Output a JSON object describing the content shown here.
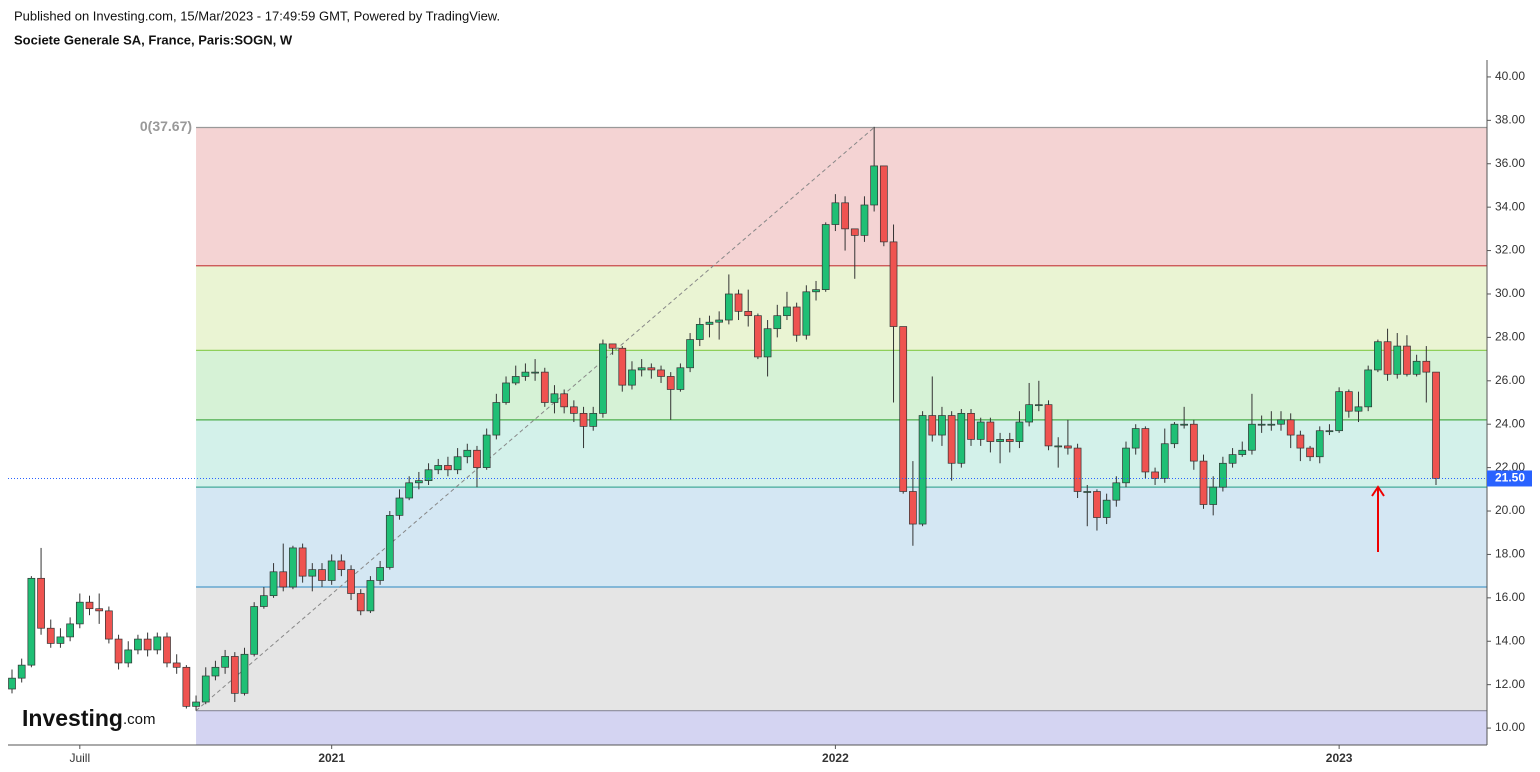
{
  "chart_data": {
    "type": "candlestick",
    "source": "Published on Investing.com, 15/Mar/2023 - 17:49:59 GMT, Powered by TradingView.",
    "title": "Societe Generale SA, France, Paris:SOGN, W",
    "categories": [
      null,
      null,
      null,
      null,
      null,
      null,
      null,
      "Juill",
      null,
      null,
      null,
      null,
      null,
      null,
      null,
      null,
      null,
      null,
      null,
      null,
      null,
      null,
      null,
      null,
      null,
      null,
      null,
      null,
      null,
      null,
      null,
      null,
      null,
      "2021",
      null,
      null,
      null,
      null,
      null,
      null,
      null,
      null,
      null,
      null,
      null,
      null,
      null,
      null,
      null,
      null,
      null,
      null,
      null,
      null,
      null,
      null,
      null,
      null,
      null,
      null,
      null,
      null,
      null,
      null,
      null,
      null,
      null,
      null,
      null,
      null,
      null,
      null,
      null,
      null,
      null,
      null,
      null,
      null,
      null,
      null,
      null,
      null,
      null,
      null,
      null,
      "2022",
      null,
      null,
      null,
      null,
      null,
      null,
      null,
      null,
      null,
      null,
      null,
      null,
      null,
      null,
      null,
      null,
      null,
      null,
      null,
      null,
      null,
      null,
      null,
      null,
      null,
      null,
      null,
      null,
      null,
      null,
      null,
      null,
      null,
      null,
      null,
      null,
      null,
      null,
      null,
      null,
      null,
      null,
      null,
      null,
      null,
      null,
      null,
      null,
      null,
      null,
      null,
      "2023",
      null,
      null,
      null,
      null,
      null,
      null,
      null,
      null,
      null,
      null
    ],
    "open": [
      11.8,
      12.3,
      12.9,
      16.9,
      14.6,
      13.9,
      14.2,
      14.8,
      15.8,
      15.5,
      15.4,
      14.1,
      13.0,
      13.6,
      14.1,
      13.6,
      14.2,
      13.0,
      12.8,
      11.0,
      11.2,
      12.4,
      12.8,
      13.3,
      11.6,
      13.4,
      15.6,
      16.1,
      17.2,
      16.5,
      18.3,
      17.0,
      17.3,
      16.8,
      17.7,
      17.3,
      16.2,
      15.4,
      16.8,
      17.4,
      19.8,
      20.6,
      21.3,
      21.4,
      21.9,
      22.1,
      21.9,
      22.5,
      22.8,
      22.0,
      23.5,
      25.0,
      25.9,
      26.2,
      26.4,
      26.4,
      25.0,
      25.4,
      24.8,
      24.5,
      23.9,
      24.5,
      27.7,
      27.5,
      25.8,
      26.5,
      26.6,
      26.5,
      26.2,
      25.6,
      26.6,
      27.9,
      28.6,
      28.7,
      28.8,
      30.0,
      29.2,
      29.0,
      27.1,
      28.4,
      29.0,
      29.4,
      28.1,
      30.1,
      30.2,
      33.2,
      34.2,
      33.0,
      32.7,
      34.1,
      35.9,
      32.4,
      28.5,
      20.9,
      19.4,
      24.4,
      23.5,
      24.4,
      22.2,
      24.5,
      23.3,
      24.1,
      23.2,
      23.3,
      23.2,
      24.1,
      24.9,
      24.9,
      23.0,
      23.0,
      22.9,
      20.9,
      20.9,
      19.7,
      20.5,
      21.3,
      22.9,
      23.8,
      21.8,
      21.5,
      23.1,
      24.0,
      24.0,
      22.3,
      20.3,
      21.1,
      22.2,
      22.6,
      22.8,
      24.0,
      24.0,
      24.0,
      24.2,
      23.5,
      22.9,
      22.5,
      23.7,
      23.7,
      25.5,
      24.6,
      24.8,
      26.5,
      27.8,
      26.3,
      27.6,
      26.3,
      26.9,
      26.4
    ],
    "high": [
      12.7,
      13.2,
      17.0,
      18.3,
      15.0,
      14.6,
      15.1,
      16.2,
      16.1,
      16.2,
      15.6,
      14.3,
      14.0,
      14.3,
      14.4,
      14.4,
      14.4,
      13.4,
      12.9,
      11.5,
      12.8,
      13.1,
      13.6,
      13.5,
      13.7,
      15.8,
      16.5,
      17.6,
      18.5,
      18.4,
      18.5,
      17.6,
      17.6,
      18.0,
      18.0,
      17.5,
      16.4,
      17.0,
      17.7,
      20.0,
      21.0,
      21.6,
      21.8,
      22.2,
      22.4,
      22.5,
      22.9,
      23.1,
      23.0,
      23.8,
      25.4,
      26.2,
      26.7,
      26.8,
      27.0,
      26.6,
      25.8,
      25.6,
      25.1,
      24.8,
      24.8,
      27.9,
      27.7,
      27.6,
      26.9,
      27.0,
      26.8,
      26.7,
      26.4,
      26.8,
      28.2,
      28.9,
      29.0,
      29.2,
      30.9,
      30.2,
      30.2,
      29.1,
      28.8,
      29.5,
      30.1,
      29.6,
      30.4,
      30.6,
      33.3,
      34.6,
      34.5,
      33.0,
      34.5,
      37.7,
      35.9,
      33.2,
      28.5,
      22.3,
      24.6,
      26.2,
      24.8,
      24.6,
      24.7,
      24.7,
      24.3,
      24.3,
      23.6,
      23.6,
      24.6,
      25.9,
      26.0,
      25.1,
      23.4,
      24.2,
      23.1,
      21.2,
      21.0,
      20.8,
      21.6,
      23.2,
      24.0,
      23.9,
      22.0,
      23.8,
      24.1,
      24.8,
      24.2,
      22.6,
      21.6,
      22.5,
      22.9,
      23.2,
      25.4,
      24.4,
      24.6,
      24.6,
      24.5,
      23.7,
      23.0,
      23.9,
      24.0,
      25.7,
      25.6,
      25.5,
      26.7,
      27.9,
      28.4,
      28.2,
      28.1,
      27.2,
      27.6,
      26.4
    ],
    "low": [
      11.6,
      12.1,
      12.8,
      14.3,
      13.7,
      13.7,
      14.0,
      14.6,
      15.2,
      14.8,
      13.9,
      12.7,
      12.8,
      13.4,
      13.3,
      13.4,
      12.8,
      12.5,
      10.9,
      10.8,
      11.1,
      12.2,
      12.5,
      11.2,
      11.5,
      13.3,
      15.5,
      16.0,
      16.3,
      16.4,
      16.7,
      16.3,
      16.5,
      16.6,
      17.0,
      15.9,
      15.2,
      15.3,
      16.6,
      17.3,
      19.6,
      20.5,
      21.0,
      21.2,
      21.7,
      21.6,
      21.7,
      22.2,
      21.1,
      21.9,
      23.3,
      24.9,
      25.8,
      26.0,
      26.0,
      24.8,
      24.5,
      24.5,
      24.1,
      22.9,
      23.7,
      24.3,
      27.2,
      25.5,
      25.6,
      26.2,
      26.1,
      25.9,
      24.2,
      25.5,
      26.4,
      27.6,
      28.0,
      27.9,
      28.6,
      28.8,
      28.5,
      27.0,
      26.2,
      28.0,
      28.8,
      27.8,
      27.9,
      29.7,
      30.1,
      32.9,
      32.0,
      30.7,
      32.4,
      33.8,
      32.2,
      25.0,
      20.8,
      18.4,
      19.3,
      23.2,
      23.0,
      21.4,
      22.0,
      23.0,
      23.0,
      22.7,
      22.2,
      22.7,
      22.9,
      23.9,
      24.6,
      22.8,
      22.0,
      22.6,
      20.6,
      19.3,
      19.1,
      19.4,
      20.2,
      21.1,
      22.6,
      21.5,
      21.2,
      21.3,
      22.9,
      23.8,
      21.9,
      20.1,
      19.8,
      20.9,
      22.0,
      22.5,
      22.6,
      23.6,
      23.7,
      23.7,
      22.9,
      22.3,
      22.3,
      22.2,
      23.5,
      23.6,
      24.3,
      24.1,
      24.6,
      26.4,
      26.0,
      26.1,
      26.2,
      26.2,
      25.0,
      21.2
    ],
    "close": [
      12.3,
      12.9,
      16.9,
      14.6,
      13.9,
      14.2,
      14.8,
      15.8,
      15.5,
      15.4,
      14.1,
      13.0,
      13.6,
      14.1,
      13.6,
      14.2,
      13.0,
      12.8,
      11.0,
      11.2,
      12.4,
      12.8,
      13.3,
      11.6,
      13.4,
      15.6,
      16.1,
      17.2,
      16.5,
      18.3,
      17.0,
      17.3,
      16.8,
      17.7,
      17.3,
      16.2,
      15.4,
      16.8,
      17.4,
      19.8,
      20.6,
      21.3,
      21.4,
      21.9,
      22.1,
      21.9,
      22.5,
      22.8,
      22.0,
      23.5,
      25.0,
      25.9,
      26.2,
      26.4,
      26.4,
      25.0,
      25.4,
      24.8,
      24.5,
      23.9,
      24.5,
      27.7,
      27.5,
      25.8,
      26.5,
      26.6,
      26.5,
      26.2,
      25.6,
      26.6,
      27.9,
      28.6,
      28.7,
      28.8,
      30.0,
      29.2,
      29.0,
      27.1,
      28.4,
      29.0,
      29.4,
      28.1,
      30.1,
      30.2,
      33.2,
      34.2,
      33.0,
      32.7,
      34.1,
      35.9,
      32.4,
      28.5,
      20.9,
      19.4,
      24.4,
      23.5,
      24.4,
      22.2,
      24.5,
      23.3,
      24.1,
      23.2,
      23.3,
      23.2,
      24.1,
      24.9,
      24.9,
      23.0,
      23.0,
      22.9,
      20.9,
      20.9,
      19.7,
      20.5,
      21.3,
      22.9,
      23.8,
      21.8,
      21.5,
      23.1,
      24.0,
      24.0,
      22.3,
      20.3,
      21.1,
      22.2,
      22.6,
      22.8,
      24.0,
      24.0,
      24.0,
      24.2,
      23.5,
      22.9,
      22.5,
      23.7,
      23.7,
      25.5,
      24.6,
      24.8,
      26.5,
      27.8,
      26.3,
      27.6,
      26.3,
      26.9,
      26.4,
      21.5
    ],
    "up_color": "#1fbf75",
    "down_color": "#ef5350",
    "ylim": [
      9.22,
      40.78
    ],
    "yticks": [
      {
        "value": 10,
        "label": "10.00"
      },
      {
        "value": 12,
        "label": "12.00"
      },
      {
        "value": 14,
        "label": "14.00"
      },
      {
        "value": 16,
        "label": "16.00"
      },
      {
        "value": 18,
        "label": "18.00"
      },
      {
        "value": 20,
        "label": "20.00"
      },
      {
        "value": 22,
        "label": "22.00"
      },
      {
        "value": 24,
        "label": "24.00"
      },
      {
        "value": 26,
        "label": "26.00"
      },
      {
        "value": 28,
        "label": "28.00"
      },
      {
        "value": 30,
        "label": "30.00"
      },
      {
        "value": 32,
        "label": "32.00"
      },
      {
        "value": 34,
        "label": "34.00"
      },
      {
        "value": 36,
        "label": "36.00"
      },
      {
        "value": 38,
        "label": "38.00"
      },
      {
        "value": 40,
        "label": "40.00"
      }
    ],
    "last_price": {
      "value": 21.5,
      "label": "21.50",
      "color": "#2962ff"
    },
    "fib": {
      "label": "0(37.67)",
      "levels": [
        37.67,
        31.3,
        27.4,
        24.2,
        21.1,
        16.5,
        10.8
      ],
      "fill_colors": [
        "#f4d3d3",
        "#eaf4d3",
        "#d6f2d6",
        "#d3f1ea",
        "#d4e7f3",
        "#e5e5e5",
        "#d4d4f2"
      ],
      "line_colors": [
        "#999999",
        "#c94a4a",
        "#8fcf5a",
        "#4cad4c",
        "#44aa99",
        "#4d9bc9",
        "#8a8a9a"
      ]
    },
    "trend_line": {
      "x": [
        19,
        89
      ],
      "y": [
        10.8,
        37.67
      ]
    }
  },
  "logo": {
    "name": "Investing",
    "suffix": ".com"
  }
}
